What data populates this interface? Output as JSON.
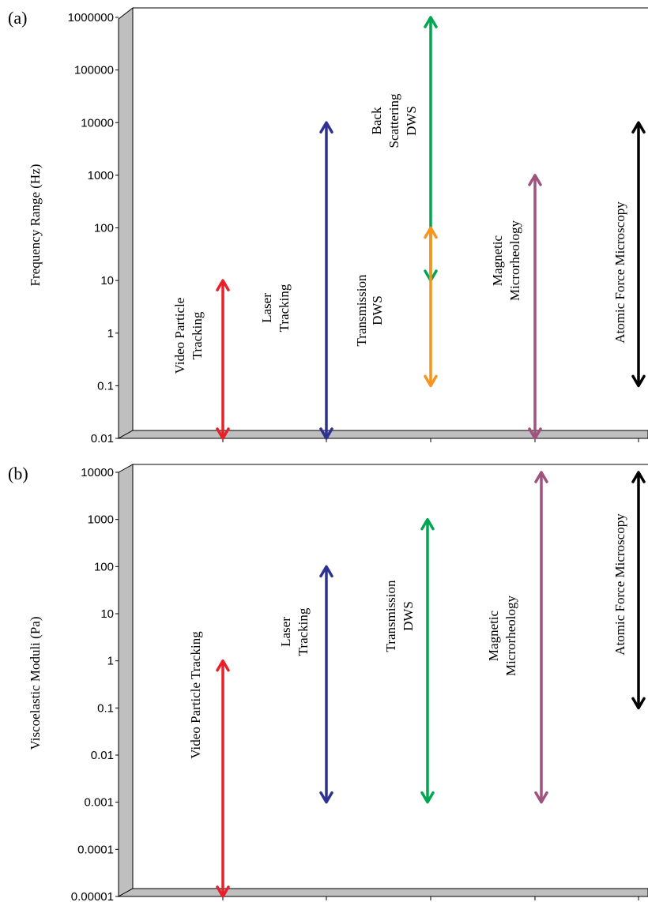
{
  "chart_data": [
    {
      "panel": "(a)",
      "type": "range-arrows",
      "ylabel": "Frequency Range (Hz)",
      "yscale": "log",
      "ylim": [
        0.01,
        1000000
      ],
      "ytick_labels": [
        "1000000",
        "100000",
        "10000",
        "1000",
        "100",
        "10",
        "1",
        "0.1",
        "0.01"
      ],
      "grid": false,
      "series": [
        {
          "name": "Video Particle Tracking",
          "label_lines": [
            "Video Particle",
            "Tracking"
          ],
          "min": 0.01,
          "max": 10,
          "color": "#e8202a"
        },
        {
          "name": "Laser Tracking",
          "label_lines": [
            "Laser",
            "Tracking"
          ],
          "min": 0.01,
          "max": 10000,
          "color": "#2e3192"
        },
        {
          "name": "Transmission DWS",
          "label_lines": [
            "Transmission",
            "DWS"
          ],
          "min": 10,
          "max": 1000000,
          "color": "#00a651"
        },
        {
          "name": "Back Scattering DWS",
          "label_lines": [
            "Back",
            "Scattering",
            "DWS"
          ],
          "min": 0.1,
          "max": 100,
          "color": "#f7941d"
        },
        {
          "name": "Magnetic Microrheology",
          "label_lines": [
            "Magnetic",
            "Microrheology"
          ],
          "min": 0.01,
          "max": 1000,
          "color": "#a0527e"
        },
        {
          "name": "Atomic Force Microscopy",
          "label_lines": [
            "Atomic Force Microscopy"
          ],
          "min": 0.1,
          "max": 10000,
          "color": "#000000"
        }
      ]
    },
    {
      "panel": "(b)",
      "type": "range-arrows",
      "ylabel": "Viscoelastic Moduli (Pa)",
      "yscale": "log",
      "ylim": [
        1e-05,
        10000
      ],
      "ytick_labels": [
        "10000",
        "1000",
        "100",
        "10",
        "1",
        "0.1",
        "0.01",
        "0.001",
        "0.0001",
        "0.00001"
      ],
      "grid": false,
      "series": [
        {
          "name": "Video Particle Tracking",
          "label_lines": [
            "Video Particle Tracking"
          ],
          "min": 1e-05,
          "max": 1,
          "color": "#e8202a"
        },
        {
          "name": "Laser Tracking",
          "label_lines": [
            "Laser",
            "Tracking"
          ],
          "min": 0.001,
          "max": 100,
          "color": "#2e3192"
        },
        {
          "name": "Transmission DWS",
          "label_lines": [
            "Transmission",
            "DWS"
          ],
          "min": 0.001,
          "max": 1000,
          "color": "#00a651"
        },
        {
          "name": "Magnetic Microrheology",
          "label_lines": [
            "Magnetic",
            "Microrheology"
          ],
          "min": 0.001,
          "max": 10000,
          "color": "#a0527e"
        },
        {
          "name": "Atomic Force Microscopy",
          "label_lines": [
            "Atomic Force Microscopy"
          ],
          "min": 0.1,
          "max": 10000,
          "color": "#000000"
        }
      ]
    }
  ]
}
